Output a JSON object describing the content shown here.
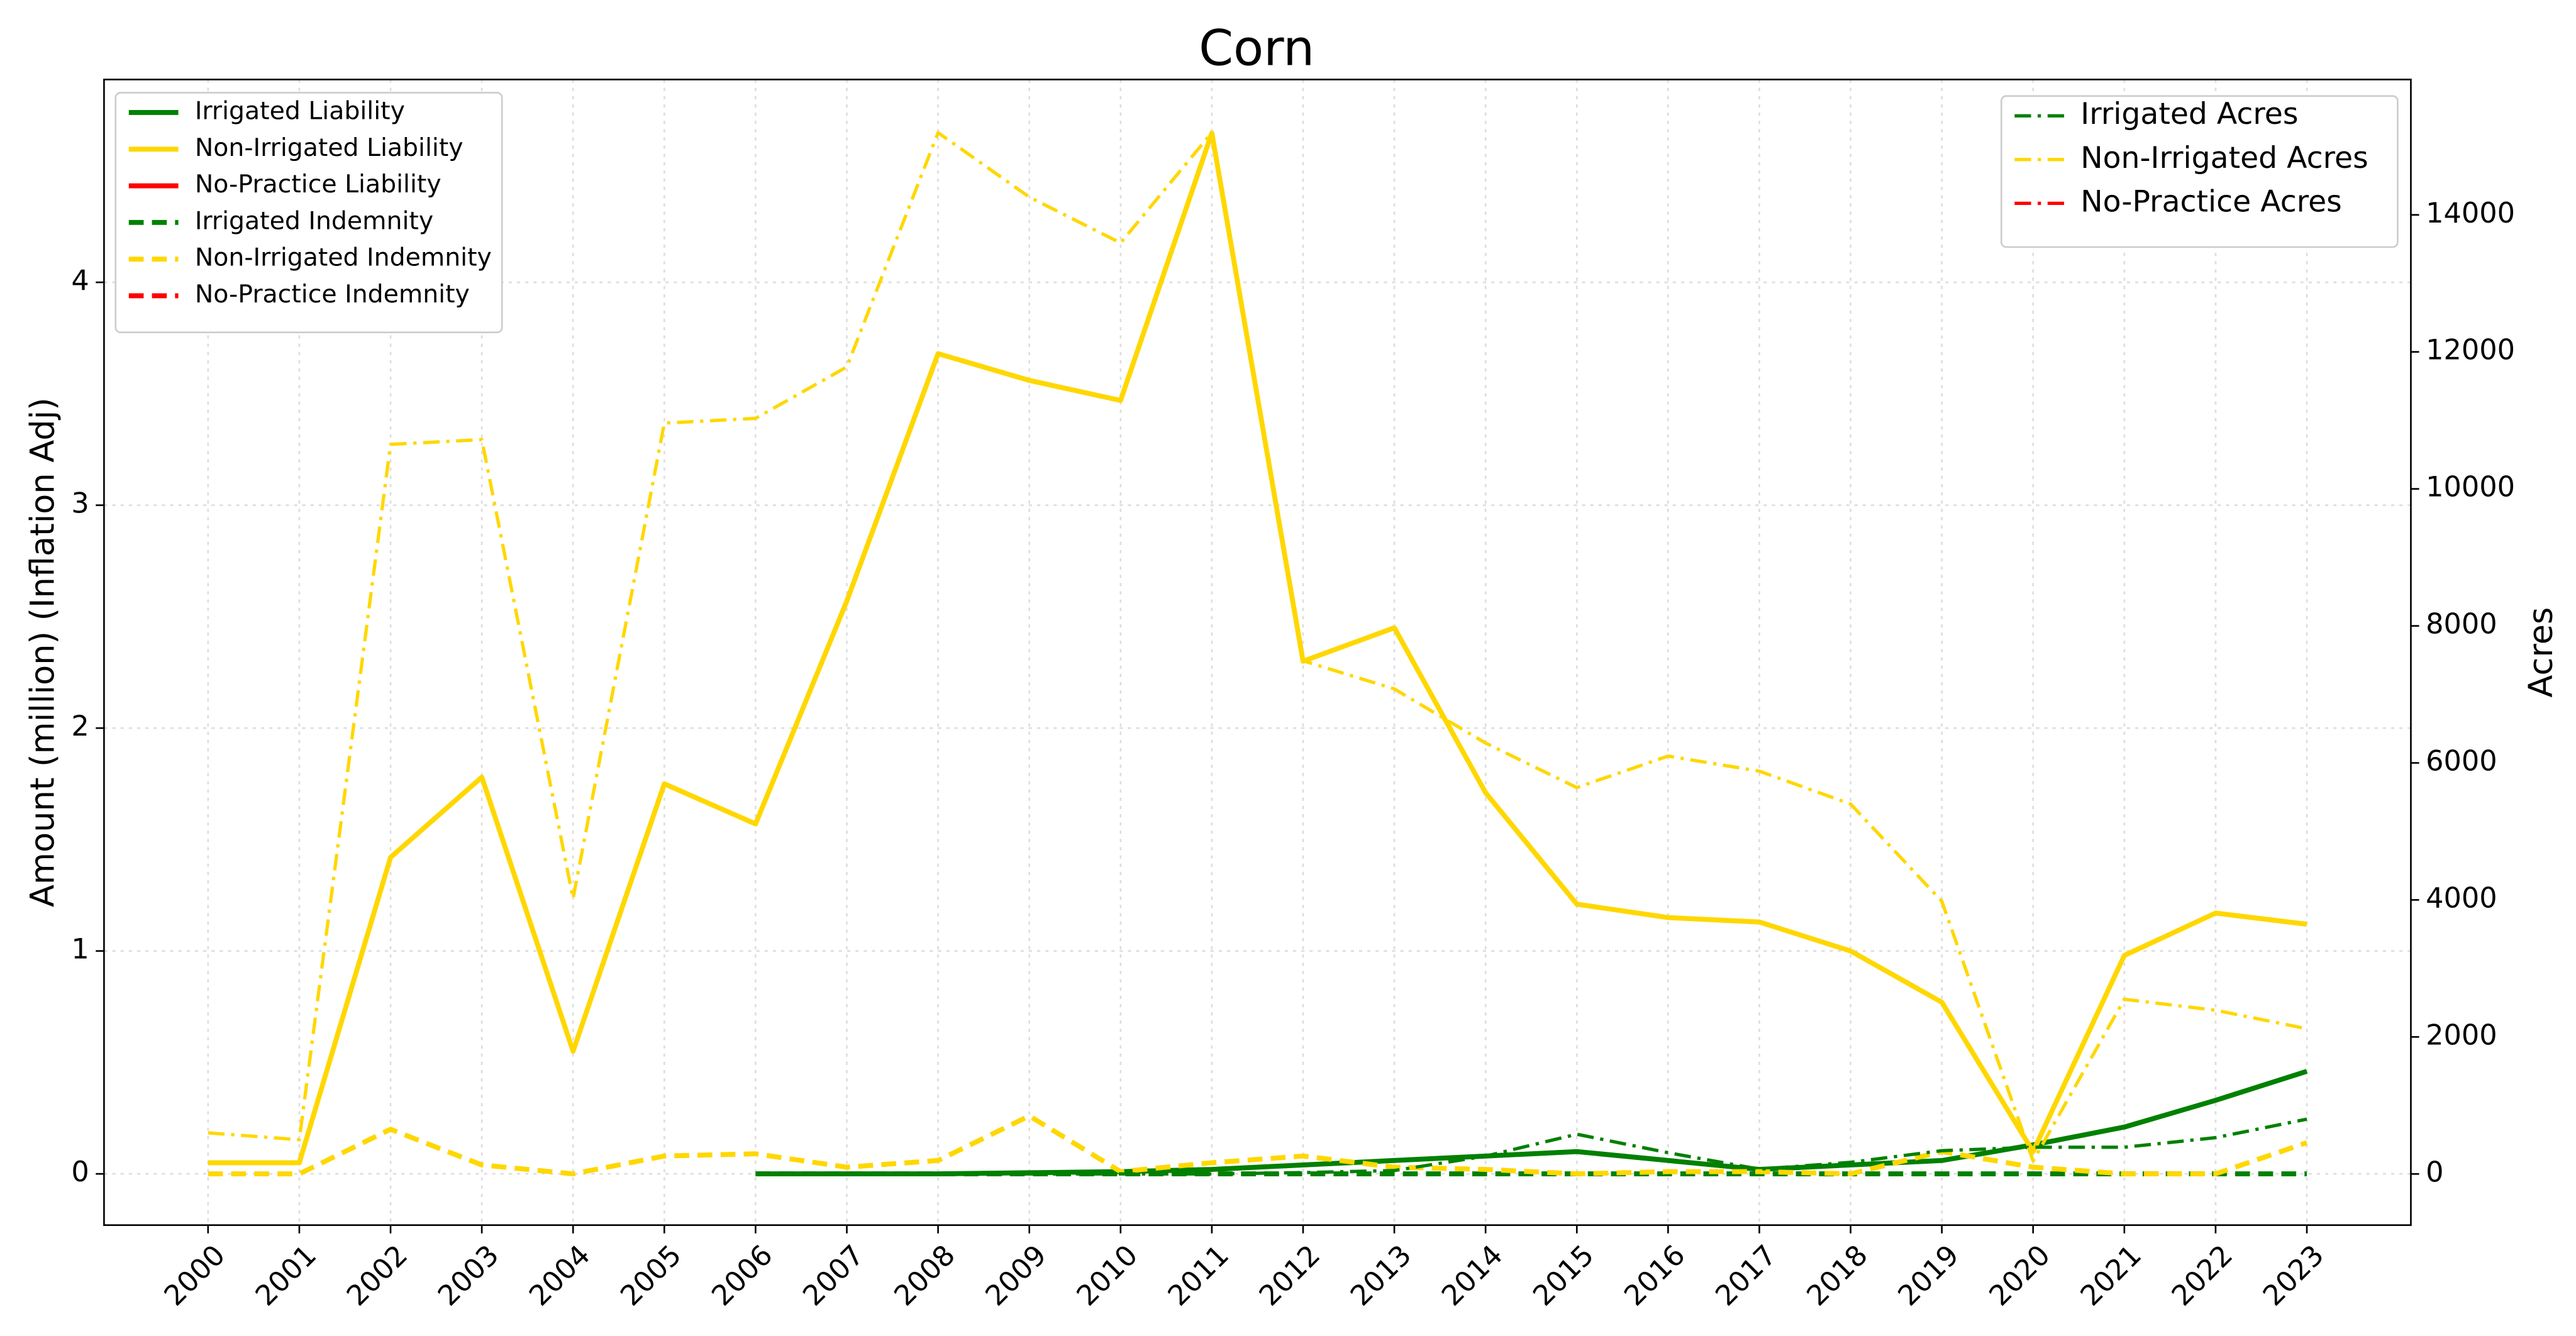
{
  "chart_data": {
    "type": "line",
    "title": "Corn",
    "ylabel": "Amount (million) (Inflation Adj)",
    "y2label": "Acres",
    "x": [
      2000,
      2001,
      2002,
      2003,
      2004,
      2005,
      2006,
      2007,
      2008,
      2009,
      2010,
      2011,
      2012,
      2013,
      2014,
      2015,
      2016,
      2017,
      2018,
      2019,
      2020,
      2021,
      2022,
      2023
    ],
    "xticks": [
      2000,
      2001,
      2002,
      2003,
      2004,
      2005,
      2006,
      2007,
      2008,
      2009,
      2010,
      2011,
      2012,
      2013,
      2014,
      2015,
      2016,
      2017,
      2018,
      2019,
      2020,
      2021,
      2022,
      2023
    ],
    "xlim": [
      1998.86,
      2024.14
    ],
    "ylim": [
      -0.23,
      4.91
    ],
    "yticks": [
      0,
      1,
      2,
      3,
      4
    ],
    "y2lim": [
      -747,
      15976
    ],
    "y2ticks": [
      0,
      2000,
      4000,
      6000,
      8000,
      10000,
      12000,
      14000
    ],
    "grid": true,
    "legend": "upper left",
    "legend2": "upper right",
    "series": [
      {
        "name": "Irrigated Liability",
        "color": "#008000",
        "style": "solid",
        "values": [
          null,
          null,
          null,
          null,
          null,
          null,
          0,
          0,
          0,
          0.005,
          0.01,
          0.02,
          0.04,
          0.06,
          0.08,
          0.1,
          0.06,
          0.02,
          0.04,
          0.06,
          0.13,
          0.21,
          0.33,
          0.46
        ]
      },
      {
        "name": "Non-Irrigated Liability",
        "color": "#ffd700",
        "style": "solid",
        "values": [
          0.05,
          0.05,
          1.42,
          1.78,
          0.55,
          1.75,
          1.57,
          2.57,
          3.68,
          3.56,
          3.47,
          4.67,
          2.3,
          2.45,
          1.71,
          1.21,
          1.15,
          1.13,
          1.0,
          0.77,
          0.1,
          0.98,
          1.17,
          1.12
        ]
      },
      {
        "name": "No-Practice Liability",
        "color": "#ff0000",
        "style": "solid",
        "values": [
          null,
          null,
          null,
          null,
          null,
          null,
          null,
          null,
          null,
          null,
          null,
          null,
          null,
          null,
          null,
          null,
          null,
          null,
          null,
          null,
          null,
          null,
          null,
          null
        ]
      },
      {
        "name": "Irrigated Indemnity",
        "color": "#008000",
        "style": "dashed",
        "values": [
          null,
          null,
          null,
          null,
          null,
          null,
          0,
          0,
          0,
          0,
          0,
          0,
          0,
          0,
          0,
          0,
          0,
          0,
          0,
          0,
          0,
          0,
          0,
          0
        ]
      },
      {
        "name": "Non-Irrigated Indemnity",
        "color": "#ffd700",
        "style": "dashed",
        "values": [
          0,
          0,
          0.2,
          0.04,
          0,
          0.08,
          0.09,
          0.03,
          0.06,
          0.26,
          0.01,
          0.05,
          0.08,
          0.03,
          0.02,
          0,
          0.01,
          0.01,
          0,
          0.1,
          0.03,
          0,
          0,
          0.14
        ]
      },
      {
        "name": "No-Practice Indemnity",
        "color": "#ff0000",
        "style": "dashed",
        "values": [
          null,
          null,
          null,
          null,
          null,
          null,
          null,
          null,
          null,
          null,
          null,
          null,
          null,
          null,
          null,
          null,
          null,
          null,
          null,
          null,
          null,
          null,
          null,
          null
        ]
      },
      {
        "name": "Irrigated Acres",
        "color": "#008000",
        "style": "dashdot",
        "axis": "y2",
        "values": [
          null,
          null,
          null,
          null,
          null,
          null,
          0,
          0,
          0,
          0,
          0,
          0,
          20,
          50,
          260,
          580,
          310,
          70,
          170,
          340,
          390,
          390,
          530,
          800
        ]
      },
      {
        "name": "Non-Irrigated Acres",
        "color": "#ffd700",
        "style": "dashdot",
        "axis": "y2",
        "values": [
          600,
          500,
          10650,
          10720,
          4020,
          10960,
          11030,
          11780,
          15200,
          14260,
          13590,
          15200,
          7490,
          7080,
          6290,
          5640,
          6100,
          5880,
          5400,
          3980,
          190,
          2550,
          2390,
          2120
        ]
      },
      {
        "name": "No-Practice Acres",
        "color": "#ff0000",
        "style": "dashdot",
        "axis": "y2",
        "values": [
          null,
          null,
          null,
          null,
          null,
          null,
          null,
          null,
          null,
          null,
          null,
          null,
          null,
          null,
          null,
          null,
          null,
          null,
          null,
          null,
          null,
          null,
          null,
          null
        ]
      }
    ]
  }
}
